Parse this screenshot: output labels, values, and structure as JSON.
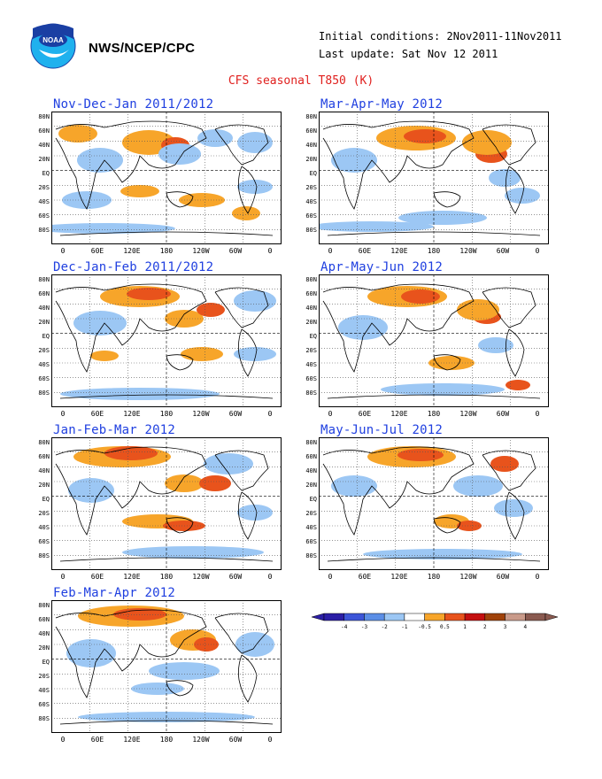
{
  "header": {
    "logo_icon": "noaa-logo",
    "org": "NWS/NCEP/CPC",
    "initial_conditions": "Initial conditions: 2Nov2011-11Nov2011",
    "last_update": "Last update: Sat Nov 12 2011",
    "title": "CFS seasonal T850 (K)"
  },
  "axes": {
    "lat_labels": [
      "80N",
      "60N",
      "40N",
      "20N",
      "EQ",
      "20S",
      "40S",
      "60S",
      "80S"
    ],
    "lon_labels": [
      "0",
      "60E",
      "120E",
      "180",
      "120W",
      "60W",
      "0"
    ]
  },
  "panels": [
    {
      "title": "Nov-Dec-Jan 2011/2012"
    },
    {
      "title": "Mar-Apr-May 2012"
    },
    {
      "title": "Dec-Jan-Feb 2011/2012"
    },
    {
      "title": "Apr-May-Jun 2012"
    },
    {
      "title": "Jan-Feb-Mar 2012"
    },
    {
      "title": "May-Jun-Jul 2012"
    },
    {
      "title": "Feb-Mar-Apr 2012"
    }
  ],
  "legend": {
    "labels": [
      "-4",
      "-3",
      "-2",
      "-1",
      "-0.5",
      "0.5",
      "1",
      "2",
      "3",
      "4"
    ],
    "colors": [
      "#2b1ea6",
      "#3c55d8",
      "#5b8ee6",
      "#9cc7f4",
      "#ffffff",
      "#f7a52a",
      "#e8531c",
      "#c41010",
      "#a0420a",
      "#c99a8a",
      "#8a5a50"
    ]
  },
  "colors": {
    "warm_light": "#f7a52a",
    "warm_mid": "#e8531c",
    "warm_dark": "#c41010",
    "cool_light": "#9cc7f4",
    "cool_mid": "#5b8ee6",
    "cool_dark": "#3c55d8"
  }
}
